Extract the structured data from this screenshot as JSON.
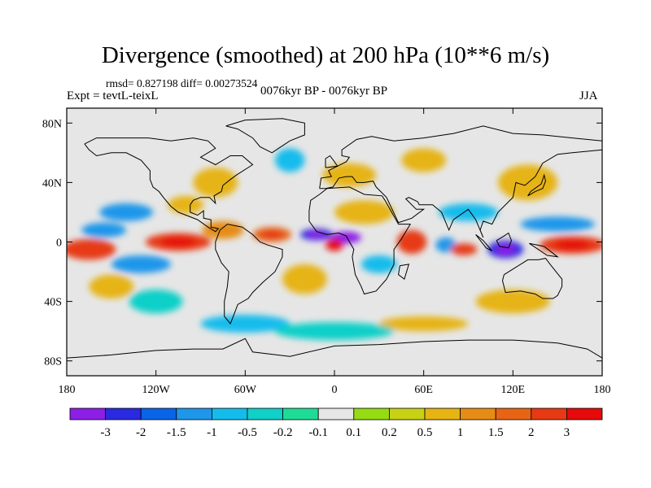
{
  "chart_data": {
    "type": "heatmap",
    "title": "Divergence (smoothed) at 200 hPa (10**6 m/s)",
    "stats_text": "rmsd= 0.827198  diff= 0.00273524",
    "left_label": "Expt = tevtL-teixL",
    "center_label": "0076kyr BP - 0076kyr BP",
    "right_label": "JJA",
    "xlim": [
      -180,
      180
    ],
    "ylim": [
      -90,
      90
    ],
    "x_ticks": [
      {
        "value": -180,
        "label": "180"
      },
      {
        "value": -120,
        "label": "120W"
      },
      {
        "value": -60,
        "label": "60W"
      },
      {
        "value": 0,
        "label": "0"
      },
      {
        "value": 60,
        "label": "60E"
      },
      {
        "value": 120,
        "label": "120E"
      },
      {
        "value": 180,
        "label": "180"
      }
    ],
    "y_ticks": [
      {
        "value": 80,
        "label": "80N"
      },
      {
        "value": 40,
        "label": "40N"
      },
      {
        "value": 0,
        "label": "0"
      },
      {
        "value": -40,
        "label": "40S"
      },
      {
        "value": -80,
        "label": "80S"
      }
    ],
    "colorbar": {
      "colors": [
        "#8c1ee6",
        "#2a2ae0",
        "#0a64e8",
        "#1e96ea",
        "#14bcec",
        "#10d0c8",
        "#1edc96",
        "#e6e6e6",
        "#96dc14",
        "#c8d214",
        "#e6b414",
        "#e68c14",
        "#e66414",
        "#e63a14",
        "#e60a0a"
      ],
      "labels": [
        "-3",
        "-2",
        "-1.5",
        "-1",
        "-0.5",
        "-0.2",
        "-0.1",
        "0.1",
        "0.2",
        "0.5",
        "1",
        "1.5",
        "2",
        "3"
      ]
    },
    "anomaly_blobs": [
      {
        "lon": -165,
        "lat": -5,
        "rx": 18,
        "ry": 7,
        "value": 2.2
      },
      {
        "lon": -105,
        "lat": 0,
        "rx": 22,
        "ry": 6,
        "value": 2.4
      },
      {
        "lon": -75,
        "lat": 8,
        "rx": 14,
        "ry": 6,
        "value": 1.2
      },
      {
        "lon": -42,
        "lat": 5,
        "rx": 13,
        "ry": 5,
        "value": 1.8
      },
      {
        "lon": -12,
        "lat": 5,
        "rx": 11,
        "ry": 4,
        "value": -2.6
      },
      {
        "lon": 8,
        "lat": 3,
        "rx": 10,
        "ry": 4,
        "value": -3.2
      },
      {
        "lon": 0,
        "lat": -2,
        "rx": 6,
        "ry": 4,
        "value": 3.1
      },
      {
        "lon": 52,
        "lat": 0,
        "rx": 10,
        "ry": 8,
        "value": 2.3
      },
      {
        "lon": 75,
        "lat": -2,
        "rx": 7,
        "ry": 5,
        "value": -1.2
      },
      {
        "lon": 87,
        "lat": -5,
        "rx": 9,
        "ry": 4,
        "value": 2.0
      },
      {
        "lon": 115,
        "lat": -5,
        "rx": 12,
        "ry": 6,
        "value": -2.6
      },
      {
        "lon": 160,
        "lat": -2,
        "rx": 22,
        "ry": 6,
        "value": 2.8
      },
      {
        "lon": 150,
        "lat": 12,
        "rx": 25,
        "ry": 5,
        "value": -1.2
      },
      {
        "lon": -140,
        "lat": 20,
        "rx": 18,
        "ry": 6,
        "value": -1.2
      },
      {
        "lon": -155,
        "lat": 8,
        "rx": 15,
        "ry": 5,
        "value": -1.1
      },
      {
        "lon": -130,
        "lat": -15,
        "rx": 20,
        "ry": 6,
        "value": -1.2
      },
      {
        "lon": -150,
        "lat": -30,
        "rx": 15,
        "ry": 8,
        "value": 0.7
      },
      {
        "lon": -20,
        "lat": -25,
        "rx": 15,
        "ry": 10,
        "value": 0.8
      },
      {
        "lon": 30,
        "lat": -15,
        "rx": 12,
        "ry": 6,
        "value": -0.8
      },
      {
        "lon": 130,
        "lat": 40,
        "rx": 20,
        "ry": 12,
        "value": 0.9
      },
      {
        "lon": -80,
        "lat": 40,
        "rx": 15,
        "ry": 10,
        "value": 0.6
      },
      {
        "lon": 10,
        "lat": 45,
        "rx": 18,
        "ry": 8,
        "value": 0.7
      },
      {
        "lon": -30,
        "lat": 55,
        "rx": 10,
        "ry": 8,
        "value": -0.6
      },
      {
        "lon": 60,
        "lat": 55,
        "rx": 15,
        "ry": 8,
        "value": 0.6
      },
      {
        "lon": -60,
        "lat": -55,
        "rx": 30,
        "ry": 6,
        "value": -0.7
      },
      {
        "lon": 60,
        "lat": -55,
        "rx": 30,
        "ry": 5,
        "value": 0.5
      },
      {
        "lon": 120,
        "lat": -40,
        "rx": 25,
        "ry": 8,
        "value": 0.6
      },
      {
        "lon": 20,
        "lat": 20,
        "rx": 20,
        "ry": 8,
        "value": 0.5
      },
      {
        "lon": -100,
        "lat": 25,
        "rx": 12,
        "ry": 6,
        "value": 0.6
      },
      {
        "lon": 90,
        "lat": 20,
        "rx": 20,
        "ry": 6,
        "value": -0.6
      },
      {
        "lon": -120,
        "lat": -40,
        "rx": 18,
        "ry": 8,
        "value": -0.5
      },
      {
        "lon": 0,
        "lat": -60,
        "rx": 40,
        "ry": 6,
        "value": -0.5
      }
    ],
    "coastlines": [
      {
        "name": "north-america",
        "points": [
          [
            -168,
            66
          ],
          [
            -160,
            70
          ],
          [
            -140,
            70
          ],
          [
            -125,
            70
          ],
          [
            -110,
            68
          ],
          [
            -95,
            70
          ],
          [
            -85,
            68
          ],
          [
            -80,
            63
          ],
          [
            -90,
            57
          ],
          [
            -80,
            52
          ],
          [
            -70,
            58
          ],
          [
            -62,
            58
          ],
          [
            -55,
            52
          ],
          [
            -66,
            45
          ],
          [
            -70,
            42
          ],
          [
            -75,
            38
          ],
          [
            -76,
            34
          ],
          [
            -81,
            31
          ],
          [
            -80,
            26
          ],
          [
            -82,
            28
          ],
          [
            -84,
            30
          ],
          [
            -90,
            30
          ],
          [
            -95,
            28
          ],
          [
            -97,
            25
          ],
          [
            -97,
            20
          ],
          [
            -92,
            18
          ],
          [
            -88,
            21
          ],
          [
            -88,
            16
          ],
          [
            -83,
            15
          ],
          [
            -83,
            10
          ],
          [
            -78,
            9
          ],
          [
            -80,
            7
          ],
          [
            -85,
            10
          ],
          [
            -92,
            15
          ],
          [
            -105,
            20
          ],
          [
            -110,
            24
          ],
          [
            -115,
            30
          ],
          [
            -118,
            34
          ],
          [
            -122,
            37
          ],
          [
            -124,
            42
          ],
          [
            -124,
            48
          ],
          [
            -130,
            55
          ],
          [
            -140,
            60
          ],
          [
            -150,
            60
          ],
          [
            -160,
            58
          ],
          [
            -165,
            62
          ],
          [
            -168,
            66
          ]
        ]
      },
      {
        "name": "south-america",
        "points": [
          [
            -77,
            8
          ],
          [
            -72,
            12
          ],
          [
            -62,
            10
          ],
          [
            -55,
            5
          ],
          [
            -50,
            0
          ],
          [
            -45,
            -2
          ],
          [
            -35,
            -5
          ],
          [
            -35,
            -10
          ],
          [
            -40,
            -20
          ],
          [
            -48,
            -27
          ],
          [
            -55,
            -34
          ],
          [
            -58,
            -38
          ],
          [
            -65,
            -42
          ],
          [
            -68,
            -50
          ],
          [
            -70,
            -55
          ],
          [
            -74,
            -50
          ],
          [
            -74,
            -40
          ],
          [
            -72,
            -30
          ],
          [
            -71,
            -20
          ],
          [
            -76,
            -14
          ],
          [
            -80,
            -5
          ],
          [
            -80,
            0
          ],
          [
            -77,
            8
          ]
        ]
      },
      {
        "name": "greenland",
        "points": [
          [
            -73,
            78
          ],
          [
            -60,
            82
          ],
          [
            -35,
            83
          ],
          [
            -20,
            80
          ],
          [
            -20,
            72
          ],
          [
            -30,
            68
          ],
          [
            -42,
            60
          ],
          [
            -50,
            64
          ],
          [
            -55,
            70
          ],
          [
            -65,
            76
          ],
          [
            -73,
            78
          ]
        ]
      },
      {
        "name": "africa",
        "points": [
          [
            -17,
            21
          ],
          [
            -16,
            28
          ],
          [
            -10,
            32
          ],
          [
            -5,
            36
          ],
          [
            10,
            37
          ],
          [
            20,
            32
          ],
          [
            32,
            31
          ],
          [
            34,
            28
          ],
          [
            43,
            12
          ],
          [
            51,
            12
          ],
          [
            45,
            2
          ],
          [
            40,
            -5
          ],
          [
            40,
            -15
          ],
          [
            35,
            -25
          ],
          [
            28,
            -33
          ],
          [
            20,
            -35
          ],
          [
            18,
            -30
          ],
          [
            14,
            -22
          ],
          [
            12,
            -10
          ],
          [
            13,
            -5
          ],
          [
            9,
            2
          ],
          [
            8,
            4
          ],
          [
            3,
            6
          ],
          [
            -5,
            5
          ],
          [
            -12,
            7
          ],
          [
            -17,
            14
          ],
          [
            -17,
            21
          ]
        ]
      },
      {
        "name": "eurasia",
        "points": [
          [
            -10,
            36
          ],
          [
            -9,
            43
          ],
          [
            -2,
            44
          ],
          [
            -4,
            48
          ],
          [
            2,
            51
          ],
          [
            8,
            54
          ],
          [
            10,
            57
          ],
          [
            5,
            58
          ],
          [
            5,
            62
          ],
          [
            15,
            69
          ],
          [
            25,
            71
          ],
          [
            40,
            68
          ],
          [
            60,
            70
          ],
          [
            80,
            73
          ],
          [
            100,
            78
          ],
          [
            120,
            73
          ],
          [
            140,
            72
          ],
          [
            160,
            70
          ],
          [
            180,
            68
          ],
          [
            180,
            62
          ],
          [
            160,
            60
          ],
          [
            150,
            59
          ],
          [
            140,
            53
          ],
          [
            135,
            44
          ],
          [
            128,
            38
          ],
          [
            122,
            40
          ],
          [
            120,
            30
          ],
          [
            110,
            20
          ],
          [
            106,
            12
          ],
          [
            100,
            14
          ],
          [
            98,
            8
          ],
          [
            100,
            3
          ],
          [
            95,
            15
          ],
          [
            90,
            22
          ],
          [
            80,
            15
          ],
          [
            77,
            8
          ],
          [
            72,
            20
          ],
          [
            66,
            25
          ],
          [
            57,
            25
          ],
          [
            56,
            27
          ],
          [
            50,
            30
          ],
          [
            48,
            29
          ],
          [
            55,
            22
          ],
          [
            60,
            22
          ],
          [
            52,
            16
          ],
          [
            43,
            13
          ],
          [
            35,
            30
          ],
          [
            28,
            37
          ],
          [
            26,
            41
          ],
          [
            20,
            40
          ],
          [
            15,
            40
          ],
          [
            12,
            44
          ],
          [
            8,
            44
          ],
          [
            3,
            43
          ],
          [
            -1,
            37
          ],
          [
            -6,
            36
          ],
          [
            -10,
            36
          ]
        ]
      },
      {
        "name": "australia",
        "points": [
          [
            114,
            -22
          ],
          [
            113,
            -26
          ],
          [
            115,
            -34
          ],
          [
            125,
            -33
          ],
          [
            135,
            -35
          ],
          [
            140,
            -38
          ],
          [
            147,
            -38
          ],
          [
            150,
            -36
          ],
          [
            153,
            -30
          ],
          [
            153,
            -25
          ],
          [
            145,
            -15
          ],
          [
            142,
            -11
          ],
          [
            137,
            -12
          ],
          [
            130,
            -12
          ],
          [
            122,
            -17
          ],
          [
            114,
            -22
          ]
        ]
      },
      {
        "name": "borneo",
        "points": [
          [
            109,
            1
          ],
          [
            111,
            -3
          ],
          [
            117,
            -4
          ],
          [
            119,
            1
          ],
          [
            117,
            6
          ],
          [
            114,
            4
          ],
          [
            109,
            1
          ]
        ]
      },
      {
        "name": "sumatra",
        "points": [
          [
            95,
            5
          ],
          [
            100,
            1
          ],
          [
            106,
            -6
          ],
          [
            102,
            -4
          ],
          [
            95,
            5
          ]
        ]
      },
      {
        "name": "new-guinea",
        "points": [
          [
            131,
            -1
          ],
          [
            141,
            -3
          ],
          [
            150,
            -10
          ],
          [
            143,
            -9
          ],
          [
            137,
            -5
          ],
          [
            131,
            -1
          ]
        ]
      },
      {
        "name": "japan",
        "points": [
          [
            130,
            31
          ],
          [
            135,
            34
          ],
          [
            140,
            36
          ],
          [
            142,
            41
          ],
          [
            141,
            45
          ],
          [
            139,
            39
          ],
          [
            132,
            34
          ],
          [
            130,
            31
          ]
        ]
      },
      {
        "name": "madagascar",
        "points": [
          [
            44,
            -16
          ],
          [
            50,
            -15
          ],
          [
            47,
            -25
          ],
          [
            43,
            -22
          ],
          [
            44,
            -16
          ]
        ]
      },
      {
        "name": "uk",
        "points": [
          [
            -6,
            50
          ],
          [
            2,
            51
          ],
          [
            0,
            54
          ],
          [
            -3,
            58
          ],
          [
            -6,
            56
          ],
          [
            -6,
            50
          ]
        ]
      },
      {
        "name": "antarctica",
        "points": [
          [
            -180,
            -78
          ],
          [
            -150,
            -76
          ],
          [
            -120,
            -73
          ],
          [
            -95,
            -72
          ],
          [
            -75,
            -72
          ],
          [
            -60,
            -65
          ],
          [
            -55,
            -74
          ],
          [
            -30,
            -77
          ],
          [
            0,
            -70
          ],
          [
            30,
            -69
          ],
          [
            60,
            -67
          ],
          [
            90,
            -66
          ],
          [
            120,
            -66
          ],
          [
            150,
            -68
          ],
          [
            170,
            -72
          ],
          [
            180,
            -78
          ]
        ]
      }
    ]
  }
}
